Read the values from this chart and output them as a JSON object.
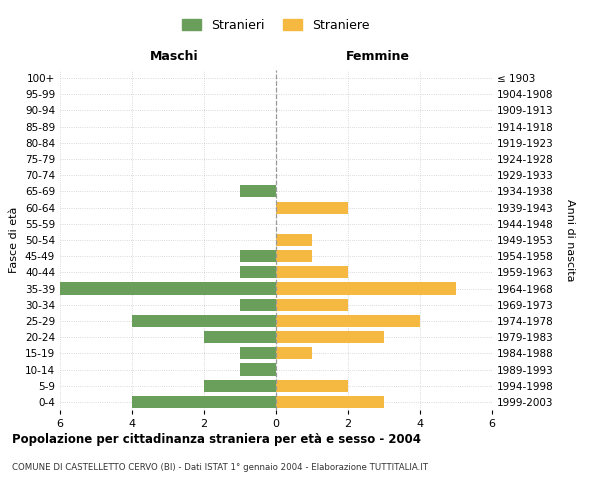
{
  "age_groups": [
    "0-4",
    "5-9",
    "10-14",
    "15-19",
    "20-24",
    "25-29",
    "30-34",
    "35-39",
    "40-44",
    "45-49",
    "50-54",
    "55-59",
    "60-64",
    "65-69",
    "70-74",
    "75-79",
    "80-84",
    "85-89",
    "90-94",
    "95-99",
    "100+"
  ],
  "birth_years": [
    "1999-2003",
    "1994-1998",
    "1989-1993",
    "1984-1988",
    "1979-1983",
    "1974-1978",
    "1969-1973",
    "1964-1968",
    "1959-1963",
    "1954-1958",
    "1949-1953",
    "1944-1948",
    "1939-1943",
    "1934-1938",
    "1929-1933",
    "1924-1928",
    "1919-1923",
    "1914-1918",
    "1909-1913",
    "1904-1908",
    "≤ 1903"
  ],
  "males": [
    4,
    2,
    1,
    1,
    2,
    4,
    1,
    7,
    1,
    1,
    0,
    0,
    0,
    1,
    0,
    0,
    0,
    0,
    0,
    0,
    0
  ],
  "females": [
    3,
    2,
    0,
    1,
    3,
    4,
    2,
    5,
    2,
    1,
    1,
    0,
    2,
    0,
    0,
    0,
    0,
    0,
    0,
    0,
    0
  ],
  "male_color": "#6a9e5b",
  "female_color": "#f5b942",
  "bg_color": "#ffffff",
  "grid_color": "#cccccc",
  "title": "Popolazione per cittadinanza straniera per età e sesso - 2004",
  "subtitle": "COMUNE DI CASTELLETTO CERVO (BI) - Dati ISTAT 1° gennaio 2004 - Elaborazione TUTTITALIA.IT",
  "xlim": 6,
  "xlabel_left": "Maschi",
  "xlabel_right": "Femmine",
  "ylabel_left": "Fasce di età",
  "ylabel_right": "Anni di nascita",
  "legend_male": "Stranieri",
  "legend_female": "Straniere"
}
